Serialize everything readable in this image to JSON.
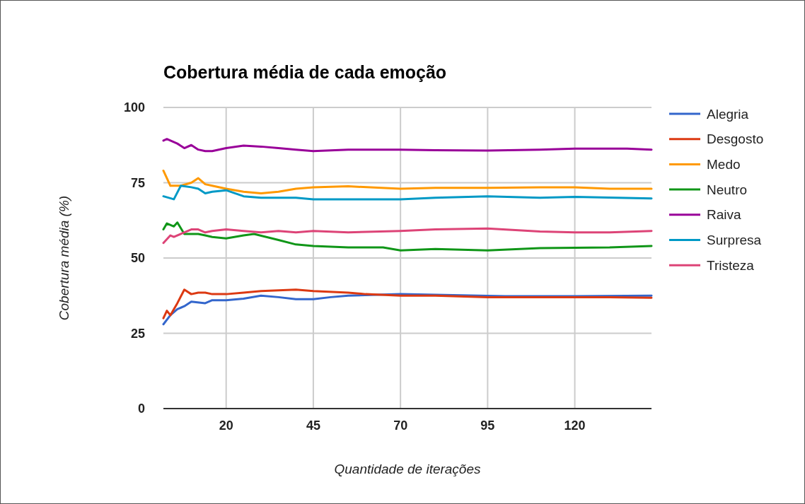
{
  "chart_data": {
    "type": "line",
    "title": "Cobertura média de cada emoção",
    "xlabel": "Quantidade de iterações",
    "ylabel": "Cobertura média (%)",
    "xlim": [
      2,
      142
    ],
    "xticks": [
      20,
      45,
      70,
      95,
      120
    ],
    "ylim": [
      0,
      100
    ],
    "yticks": [
      0,
      25,
      50,
      75,
      100
    ],
    "grid": true,
    "legend": "right",
    "marker": "none",
    "line_style": "solid",
    "series": [
      {
        "name": "Alegria",
        "color": "#3366cc",
        "x": [
          2,
          4,
          6,
          8,
          10,
          14,
          16,
          20,
          25,
          30,
          35,
          40,
          45,
          50,
          55,
          70,
          80,
          100,
          120,
          142
        ],
        "values": [
          28,
          31,
          33,
          34,
          35.5,
          35,
          36,
          36,
          36.5,
          37.5,
          37,
          36.3,
          36.3,
          37,
          37.5,
          38,
          37.8,
          37.3,
          37.3,
          37.5
        ]
      },
      {
        "name": "Desgosto",
        "color": "#dc3912",
        "x": [
          2,
          3,
          4,
          6,
          8,
          10,
          12,
          14,
          16,
          20,
          25,
          30,
          40,
          45,
          55,
          60,
          70,
          80,
          95,
          110,
          130,
          142
        ],
        "values": [
          30,
          32.5,
          31,
          35,
          39.5,
          38,
          38.5,
          38.5,
          38,
          38,
          38.5,
          39,
          39.5,
          39,
          38.5,
          38,
          37.5,
          37.5,
          37,
          37,
          37,
          36.8
        ]
      },
      {
        "name": "Medo",
        "color": "#ff9900",
        "x": [
          2,
          4,
          7,
          10,
          12,
          14,
          16,
          20,
          25,
          30,
          35,
          40,
          45,
          55,
          70,
          80,
          95,
          110,
          120,
          130,
          142
        ],
        "values": [
          79,
          74,
          74,
          75,
          76.5,
          74.5,
          74,
          73,
          72,
          71.5,
          72,
          73,
          73.5,
          73.8,
          73,
          73.3,
          73.3,
          73.5,
          73.5,
          73,
          73
        ]
      },
      {
        "name": "Neutro",
        "color": "#109618",
        "x": [
          2,
          3,
          5,
          6,
          8,
          12,
          14,
          16,
          20,
          25,
          28,
          35,
          40,
          45,
          55,
          65,
          70,
          80,
          95,
          110,
          130,
          142
        ],
        "values": [
          59.5,
          61.5,
          60.5,
          61.8,
          58,
          58,
          57.5,
          57,
          56.5,
          57.5,
          58,
          56,
          54.5,
          54,
          53.5,
          53.5,
          52.5,
          53,
          52.5,
          53.3,
          53.5,
          54
        ]
      },
      {
        "name": "Raiva",
        "color": "#990099",
        "x": [
          2,
          3,
          6,
          8,
          10,
          12,
          14,
          16,
          20,
          25,
          30,
          35,
          40,
          45,
          55,
          70,
          80,
          95,
          110,
          120,
          135,
          142
        ],
        "values": [
          89,
          89.5,
          88,
          86.5,
          87.5,
          86,
          85.5,
          85.5,
          86.5,
          87.3,
          87,
          86.5,
          86,
          85.5,
          86,
          86,
          85.8,
          85.7,
          86,
          86.3,
          86.3,
          86
        ]
      },
      {
        "name": "Surpresa",
        "color": "#0099c6",
        "x": [
          2,
          5,
          7,
          10,
          12,
          14,
          16,
          20,
          25,
          30,
          40,
          45,
          55,
          70,
          80,
          95,
          110,
          120,
          142
        ],
        "values": [
          70.5,
          69.5,
          74,
          73.5,
          73,
          71.5,
          72,
          72.5,
          70.5,
          70,
          70,
          69.5,
          69.5,
          69.5,
          70,
          70.5,
          70,
          70.3,
          69.8
        ]
      },
      {
        "name": "Tristeza",
        "color": "#dd4477",
        "x": [
          2,
          4,
          5,
          7,
          10,
          12,
          14,
          16,
          20,
          25,
          30,
          35,
          40,
          45,
          55,
          70,
          80,
          95,
          110,
          120,
          130,
          142
        ],
        "values": [
          55,
          57.5,
          57,
          58,
          59.5,
          59.5,
          58.5,
          59,
          59.5,
          59,
          58.5,
          59,
          58.5,
          59,
          58.5,
          59,
          59.5,
          59.8,
          58.8,
          58.5,
          58.5,
          59
        ]
      }
    ]
  }
}
